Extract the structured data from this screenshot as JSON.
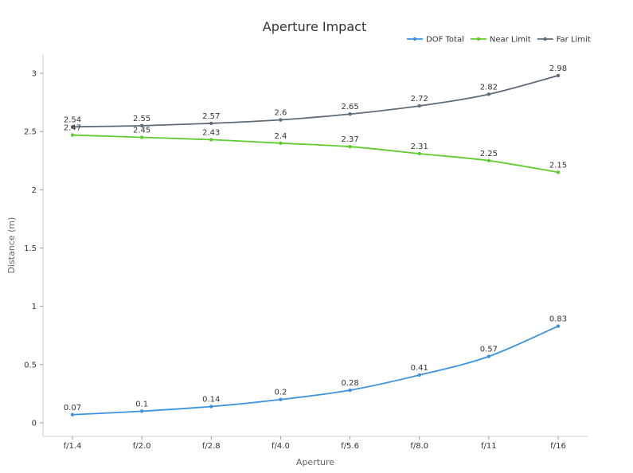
{
  "chart_data": {
    "type": "line",
    "title": "Aperture Impact",
    "xlabel": "Aperture",
    "ylabel": "Distance (m)",
    "categories": [
      "f/1.4",
      "f/2.0",
      "f/2.8",
      "f/4.0",
      "f/5.6",
      "f/8.0",
      "f/11",
      "f/16"
    ],
    "ylim": [
      0,
      3
    ],
    "yticks": [
      0,
      0.5,
      1,
      1.5,
      2,
      2.5,
      3
    ],
    "ytick_labels": [
      "0",
      "0.5",
      "1",
      "1.5",
      "2",
      "2.5",
      "3"
    ],
    "grid": false,
    "legend_position": "top-right",
    "series": [
      {
        "name": "DOF Total",
        "color": "#3b93e0",
        "values": [
          0.07,
          0.1,
          0.14,
          0.2,
          0.28,
          0.41,
          0.57,
          0.83
        ],
        "labels": [
          "0.07",
          "0.1",
          "0.14",
          "0.2",
          "0.28",
          "0.41",
          "0.57",
          "0.83"
        ]
      },
      {
        "name": "Near Limit",
        "color": "#5fcc2d",
        "values": [
          2.47,
          2.45,
          2.43,
          2.4,
          2.37,
          2.31,
          2.25,
          2.15
        ],
        "labels": [
          "2.47",
          "2.45",
          "2.43",
          "2.4",
          "2.37",
          "2.31",
          "2.25",
          "2.15"
        ]
      },
      {
        "name": "Far Limit",
        "color": "#5f6b78",
        "values": [
          2.54,
          2.55,
          2.57,
          2.6,
          2.65,
          2.72,
          2.82,
          2.98
        ],
        "labels": [
          "2.54",
          "2.55",
          "2.57",
          "2.6",
          "2.65",
          "2.72",
          "2.82",
          "2.98"
        ]
      }
    ]
  }
}
